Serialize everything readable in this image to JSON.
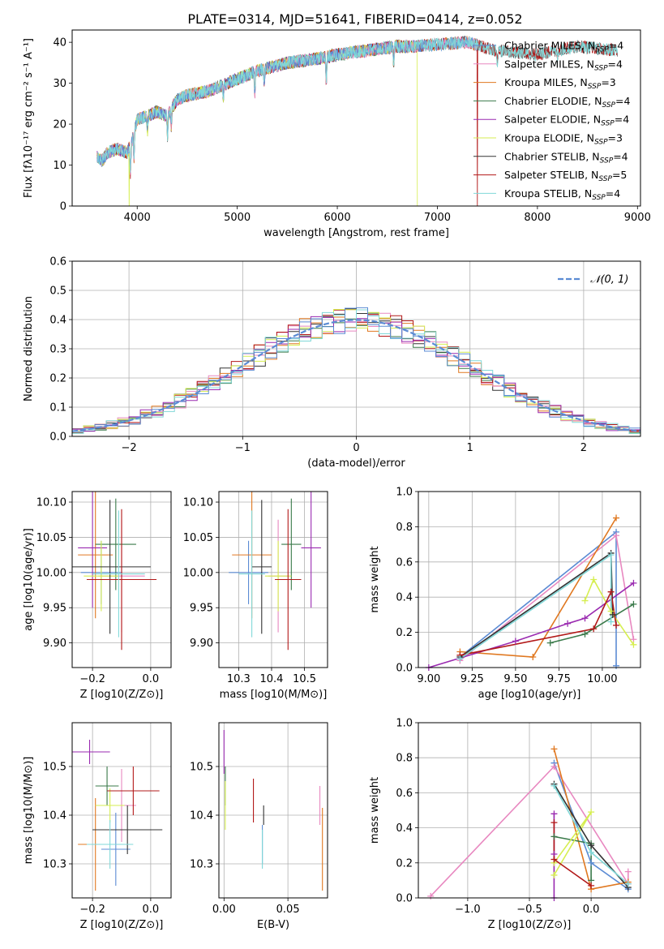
{
  "figure": {
    "title": "PLATE=0314, MJD=51641, FIBERID=0414, z=0.052"
  },
  "colors": {
    "Chabrier MILES": "#5b8bd4",
    "Salpeter MILES": "#e888c0",
    "Kroupa MILES": "#e07820",
    "Chabrier ELODIE": "#3a7a4a",
    "Salpeter ELODIE": "#9a2ab0",
    "Kroupa ELODIE": "#d6ee50",
    "Chabrier STELIB": "#333333",
    "Salpeter STELIB": "#b21818",
    "Kroupa STELIB": "#80d8d8"
  },
  "legend_spectrum": {
    "entries": [
      {
        "label": "Chabrier MILES, N",
        "sub": "SSP",
        "tail": "=4",
        "color_key": "Chabrier MILES"
      },
      {
        "label": "Salpeter MILES, N",
        "sub": "SSP",
        "tail": "=4",
        "color_key": "Salpeter MILES"
      },
      {
        "label": "Kroupa MILES, N",
        "sub": "SSP",
        "tail": "=3",
        "color_key": "Kroupa MILES"
      },
      {
        "label": "Chabrier ELODIE, N",
        "sub": "SSP",
        "tail": "=4",
        "color_key": "Chabrier ELODIE"
      },
      {
        "label": "Salpeter ELODIE, N",
        "sub": "SSP",
        "tail": "=4",
        "color_key": "Salpeter ELODIE"
      },
      {
        "label": "Kroupa ELODIE, N",
        "sub": "SSP",
        "tail": "=3",
        "color_key": "Kroupa ELODIE"
      },
      {
        "label": "Chabrier STELIB, N",
        "sub": "SSP",
        "tail": "=4",
        "color_key": "Chabrier STELIB"
      },
      {
        "label": "Salpeter STELIB, N",
        "sub": "SSP",
        "tail": "=5",
        "color_key": "Salpeter STELIB"
      },
      {
        "label": "Kroupa STELIB, N",
        "sub": "SSP",
        "tail": "=4",
        "color_key": "Kroupa STELIB"
      }
    ]
  },
  "chart_data": [
    {
      "id": "spectrum",
      "type": "line",
      "xlabel": "wavelength [Angstrom, rest frame]",
      "ylabel": "Flux [fλ10⁻¹⁷ erg cm⁻² s⁻¹ A⁻¹]",
      "xlim": [
        3350,
        9030
      ],
      "ylim": [
        0,
        43
      ],
      "xticks": [
        4000,
        5000,
        6000,
        7000,
        8000,
        9000
      ],
      "yticks": [
        0,
        10,
        20,
        30,
        40
      ],
      "grid": false,
      "legend_position": "top-right",
      "continuum": {
        "x": [
          3600,
          3650,
          3700,
          3800,
          3900,
          3950,
          4000,
          4100,
          4200,
          4300,
          4400,
          4500,
          4700,
          5000,
          5200,
          5500,
          5800,
          6000,
          6300,
          6600,
          6800,
          7000,
          7300,
          7600,
          8000,
          8400,
          8800
        ],
        "y": [
          12,
          11,
          13,
          14,
          13,
          16,
          21,
          22,
          23,
          22,
          26,
          27,
          28,
          31,
          33,
          35,
          36,
          37,
          38,
          39,
          39,
          39.5,
          40,
          38,
          37,
          39,
          38
        ]
      },
      "absorption_features": [
        {
          "x": 3933,
          "depth": 7
        },
        {
          "x": 3968,
          "depth": 6
        },
        {
          "x": 4102,
          "depth": 4
        },
        {
          "x": 4304,
          "depth": 5
        },
        {
          "x": 4340,
          "depth": 4
        },
        {
          "x": 4861,
          "depth": 3
        },
        {
          "x": 5175,
          "depth": 5
        },
        {
          "x": 5270,
          "depth": 3
        },
        {
          "x": 5890,
          "depth": 6
        },
        {
          "x": 6563,
          "depth": 4
        },
        {
          "x": 7600,
          "depth": 3
        },
        {
          "x": 8200,
          "depth": 2
        }
      ],
      "model_drops": [
        {
          "model": "Kroupa ELODIE",
          "x": 3920
        },
        {
          "model": "Kroupa ELODIE",
          "x": 6800
        },
        {
          "model": "Salpeter STELIB",
          "x": 7400
        }
      ]
    },
    {
      "id": "residuals",
      "type": "histogram",
      "xlabel": "(data-model)/error",
      "ylabel": "Normed distribution",
      "xlim": [
        -2.5,
        2.5
      ],
      "ylim": [
        0,
        0.6
      ],
      "xticks": [
        -2,
        -1,
        0,
        1,
        2
      ],
      "yticks": [
        0.0,
        0.1,
        0.2,
        0.3,
        0.4,
        0.5,
        0.6
      ],
      "grid": true,
      "bin_width": 0.1,
      "reference": {
        "label": "𝒩(0, 1)",
        "color": "#5b8bd4",
        "style": "dashed"
      },
      "legend_position": "top-right"
    },
    {
      "id": "age_vs_Z",
      "type": "errorbar",
      "xlabel": "Z [log10(Z/Z⊙)]",
      "ylabel": "age  [log10(age/yr)]",
      "xlim": [
        -0.27,
        0.07
      ],
      "ylim": [
        9.865,
        10.115
      ],
      "xticks": [
        -0.2,
        0.0
      ],
      "yticks": [
        9.9,
        9.95,
        10.0,
        10.05,
        10.1
      ],
      "grid": true,
      "points": [
        {
          "model": "Chabrier MILES",
          "x": -0.17,
          "y": 10.0,
          "xerr": 0.07,
          "yerr": 0.045
        },
        {
          "model": "Salpeter MILES",
          "x": -0.1,
          "y": 9.995,
          "xerr": 0.08,
          "yerr": 0.08
        },
        {
          "model": "Kroupa MILES",
          "x": -0.19,
          "y": 10.025,
          "xerr": 0.06,
          "yerr": 0.09
        },
        {
          "model": "Chabrier ELODIE",
          "x": -0.12,
          "y": 10.04,
          "xerr": 0.07,
          "yerr": 0.065
        },
        {
          "model": "Salpeter ELODIE",
          "x": -0.2,
          "y": 10.035,
          "xerr": 0.05,
          "yerr": 0.085
        },
        {
          "model": "Kroupa ELODIE",
          "x": -0.17,
          "y": 9.995,
          "xerr": 0.06,
          "yerr": 0.05
        },
        {
          "model": "Chabrier STELIB",
          "x": -0.14,
          "y": 10.008,
          "xerr": 0.14,
          "yerr": 0.095
        },
        {
          "model": "Salpeter STELIB",
          "x": -0.1,
          "y": 9.99,
          "xerr": 0.12,
          "yerr": 0.1
        },
        {
          "model": "Kroupa STELIB",
          "x": -0.11,
          "y": 9.998,
          "xerr": 0.09,
          "yerr": 0.09
        }
      ]
    },
    {
      "id": "age_vs_mass",
      "type": "errorbar",
      "xlabel": "mass [log10(M/M⊙)]",
      "ylabel": "",
      "xlim": [
        10.24,
        10.57
      ],
      "ylim": [
        9.865,
        10.115
      ],
      "xticks": [
        10.3,
        10.4,
        10.5
      ],
      "yticks": [
        9.9,
        9.95,
        10.0,
        10.05,
        10.1
      ],
      "grid": true,
      "points": [
        {
          "model": "Chabrier MILES",
          "x": 10.33,
          "y": 10.0,
          "xerr": 0.06,
          "yerr": 0.045
        },
        {
          "model": "Salpeter MILES",
          "x": 10.42,
          "y": 9.995,
          "xerr": 0.03,
          "yerr": 0.08
        },
        {
          "model": "Kroupa MILES",
          "x": 10.34,
          "y": 10.025,
          "xerr": 0.06,
          "yerr": 0.09
        },
        {
          "model": "Chabrier ELODIE",
          "x": 10.46,
          "y": 10.04,
          "xerr": 0.03,
          "yerr": 0.065
        },
        {
          "model": "Salpeter ELODIE",
          "x": 10.52,
          "y": 10.035,
          "xerr": 0.03,
          "yerr": 0.085
        },
        {
          "model": "Kroupa ELODIE",
          "x": 10.42,
          "y": 9.995,
          "xerr": 0.04,
          "yerr": 0.05
        },
        {
          "model": "Chabrier STELIB",
          "x": 10.37,
          "y": 10.008,
          "xerr": 0.03,
          "yerr": 0.095
        },
        {
          "model": "Salpeter STELIB",
          "x": 10.45,
          "y": 9.99,
          "xerr": 0.04,
          "yerr": 0.1
        },
        {
          "model": "Kroupa STELIB",
          "x": 10.34,
          "y": 9.998,
          "xerr": 0.04,
          "yerr": 0.09
        }
      ]
    },
    {
      "id": "mass_weight_vs_age",
      "type": "line",
      "xlabel": "age  [log10(age/yr)]",
      "ylabel": "mass weight",
      "xlim": [
        8.94,
        10.22
      ],
      "ylim": [
        0,
        1.0
      ],
      "xticks": [
        9.0,
        9.25,
        9.5,
        9.75,
        10.0
      ],
      "yticks": [
        0.0,
        0.2,
        0.4,
        0.6,
        0.8,
        1.0
      ],
      "grid": true,
      "series": [
        {
          "model": "Chabrier MILES",
          "points": [
            [
              9.18,
              0.06
            ],
            [
              10.08,
              0.77
            ],
            [
              10.08,
              0.01
            ]
          ]
        },
        {
          "model": "Salpeter MILES",
          "points": [
            [
              9.18,
              0.04
            ],
            [
              10.08,
              0.75
            ],
            [
              10.18,
              0.16
            ]
          ]
        },
        {
          "model": "Kroupa MILES",
          "points": [
            [
              9.18,
              0.09
            ],
            [
              9.6,
              0.06
            ],
            [
              10.08,
              0.85
            ]
          ]
        },
        {
          "model": "Chabrier ELODIE",
          "points": [
            [
              9.7,
              0.14
            ],
            [
              9.9,
              0.19
            ],
            [
              10.18,
              0.36
            ]
          ]
        },
        {
          "model": "Salpeter ELODIE",
          "points": [
            [
              9.0,
              0.0
            ],
            [
              9.5,
              0.15
            ],
            [
              9.8,
              0.25
            ],
            [
              9.9,
              0.28
            ],
            [
              10.18,
              0.48
            ]
          ]
        },
        {
          "model": "Kroupa ELODIE",
          "points": [
            [
              9.9,
              0.38
            ],
            [
              9.95,
              0.5
            ],
            [
              10.05,
              0.32
            ],
            [
              10.18,
              0.13
            ]
          ]
        },
        {
          "model": "Chabrier STELIB",
          "points": [
            [
              9.18,
              0.06
            ],
            [
              10.05,
              0.65
            ],
            [
              10.06,
              0.3
            ]
          ]
        },
        {
          "model": "Salpeter STELIB",
          "points": [
            [
              9.18,
              0.07
            ],
            [
              9.95,
              0.22
            ],
            [
              10.05,
              0.43
            ],
            [
              10.08,
              0.24
            ]
          ]
        },
        {
          "model": "Kroupa STELIB",
          "points": [
            [
              9.18,
              0.05
            ],
            [
              10.05,
              0.64
            ],
            [
              10.05,
              0.26
            ]
          ]
        }
      ]
    },
    {
      "id": "mass_vs_Z",
      "type": "errorbar",
      "xlabel": "Z [log10(Z/Z⊙)]",
      "ylabel": "mass [log10(M/M⊙)]",
      "xlim": [
        -0.27,
        0.07
      ],
      "ylim": [
        10.23,
        10.59
      ],
      "xticks": [
        -0.2,
        0.0
      ],
      "yticks": [
        10.3,
        10.4,
        10.5
      ],
      "grid": true,
      "points": [
        {
          "model": "Chabrier MILES",
          "x": -0.12,
          "y": 10.33,
          "xerr": 0.05,
          "yerr": 0.075
        },
        {
          "model": "Salpeter MILES",
          "x": -0.1,
          "y": 10.42,
          "xerr": 0.05,
          "yerr": 0.075
        },
        {
          "model": "Kroupa MILES",
          "x": -0.19,
          "y": 10.34,
          "xerr": 0.06,
          "yerr": 0.095
        },
        {
          "model": "Chabrier ELODIE",
          "x": -0.15,
          "y": 10.46,
          "xerr": 0.04,
          "yerr": 0.04
        },
        {
          "model": "Salpeter ELODIE",
          "x": -0.21,
          "y": 10.53,
          "xerr": 0.07,
          "yerr": 0.025
        },
        {
          "model": "Kroupa ELODIE",
          "x": -0.14,
          "y": 10.42,
          "xerr": 0.05,
          "yerr": 0.035
        },
        {
          "model": "Chabrier STELIB",
          "x": -0.08,
          "y": 10.37,
          "xerr": 0.12,
          "yerr": 0.05
        },
        {
          "model": "Salpeter STELIB",
          "x": -0.06,
          "y": 10.45,
          "xerr": 0.09,
          "yerr": 0.05
        },
        {
          "model": "Kroupa STELIB",
          "x": -0.14,
          "y": 10.34,
          "xerr": 0.08,
          "yerr": 0.05
        }
      ]
    },
    {
      "id": "mass_vs_ebv",
      "type": "errorbar",
      "xlabel": "E(B-V)",
      "ylabel": "",
      "xlim": [
        -0.004,
        0.081
      ],
      "ylim": [
        10.23,
        10.59
      ],
      "xticks": [
        0.0,
        0.05
      ],
      "yticks": [
        10.3,
        10.4,
        10.5
      ],
      "grid": true,
      "points": [
        {
          "model": "Chabrier MILES",
          "x": 0.03,
          "y": 10.34,
          "yerr": 0.04
        },
        {
          "model": "Salpeter MILES",
          "x": 0.075,
          "y": 10.42,
          "yerr": 0.04
        },
        {
          "model": "Kroupa MILES",
          "x": 0.077,
          "y": 10.33,
          "yerr": 0.085
        },
        {
          "model": "Chabrier ELODIE",
          "x": 0.001,
          "y": 10.46,
          "yerr": 0.04
        },
        {
          "model": "Salpeter ELODIE",
          "x": 0.0,
          "y": 10.53,
          "yerr": 0.045
        },
        {
          "model": "Kroupa ELODIE",
          "x": 0.001,
          "y": 10.42,
          "yerr": 0.05
        },
        {
          "model": "Chabrier STELIB",
          "x": 0.031,
          "y": 10.4,
          "yerr": 0.02
        },
        {
          "model": "Salpeter STELIB",
          "x": 0.023,
          "y": 10.43,
          "yerr": 0.045
        },
        {
          "model": "Kroupa STELIB",
          "x": 0.03,
          "y": 10.33,
          "yerr": 0.04
        }
      ]
    },
    {
      "id": "mass_weight_vs_Z",
      "type": "line",
      "xlabel": "Z [log10(Z/Z⊙)]",
      "ylabel": "mass weight",
      "xlim": [
        -1.4,
        0.4
      ],
      "ylim": [
        0,
        1.0
      ],
      "xticks": [
        -1.0,
        -0.5,
        0.0
      ],
      "yticks": [
        0.0,
        0.2,
        0.4,
        0.6,
        0.8,
        1.0
      ],
      "grid": true,
      "series": [
        {
          "model": "Chabrier MILES",
          "points": [
            [
              -0.3,
              0.77
            ],
            [
              0.0,
              0.2
            ],
            [
              0.3,
              0.05
            ]
          ]
        },
        {
          "model": "Salpeter MILES",
          "points": [
            [
              -1.3,
              0.01
            ],
            [
              -0.3,
              0.75
            ],
            [
              0.3,
              0.08
            ],
            [
              0.3,
              0.15
            ]
          ]
        },
        {
          "model": "Kroupa MILES",
          "points": [
            [
              -0.3,
              0.85
            ],
            [
              0.0,
              0.05
            ],
            [
              0.3,
              0.09
            ]
          ]
        },
        {
          "model": "Chabrier ELODIE",
          "points": [
            [
              -0.3,
              0.35
            ],
            [
              0.0,
              0.31
            ],
            [
              0.0,
              0.1
            ]
          ]
        },
        {
          "model": "Salpeter ELODIE",
          "points": [
            [
              -0.3,
              0.0
            ],
            [
              -0.3,
              0.48
            ],
            [
              -0.3,
              0.25
            ]
          ]
        },
        {
          "model": "Kroupa ELODIE",
          "points": [
            [
              -0.3,
              0.13
            ],
            [
              0.0,
              0.49
            ],
            [
              -0.3,
              0.2
            ]
          ]
        },
        {
          "model": "Chabrier STELIB",
          "points": [
            [
              -0.3,
              0.65
            ],
            [
              0.0,
              0.3
            ],
            [
              0.3,
              0.06
            ]
          ]
        },
        {
          "model": "Salpeter STELIB",
          "points": [
            [
              -0.3,
              0.43
            ],
            [
              -0.3,
              0.22
            ],
            [
              0.0,
              0.07
            ]
          ]
        },
        {
          "model": "Kroupa STELIB",
          "points": [
            [
              -0.3,
              0.64
            ],
            [
              0.0,
              0.26
            ],
            [
              0.3,
              0.08
            ]
          ]
        }
      ]
    }
  ]
}
